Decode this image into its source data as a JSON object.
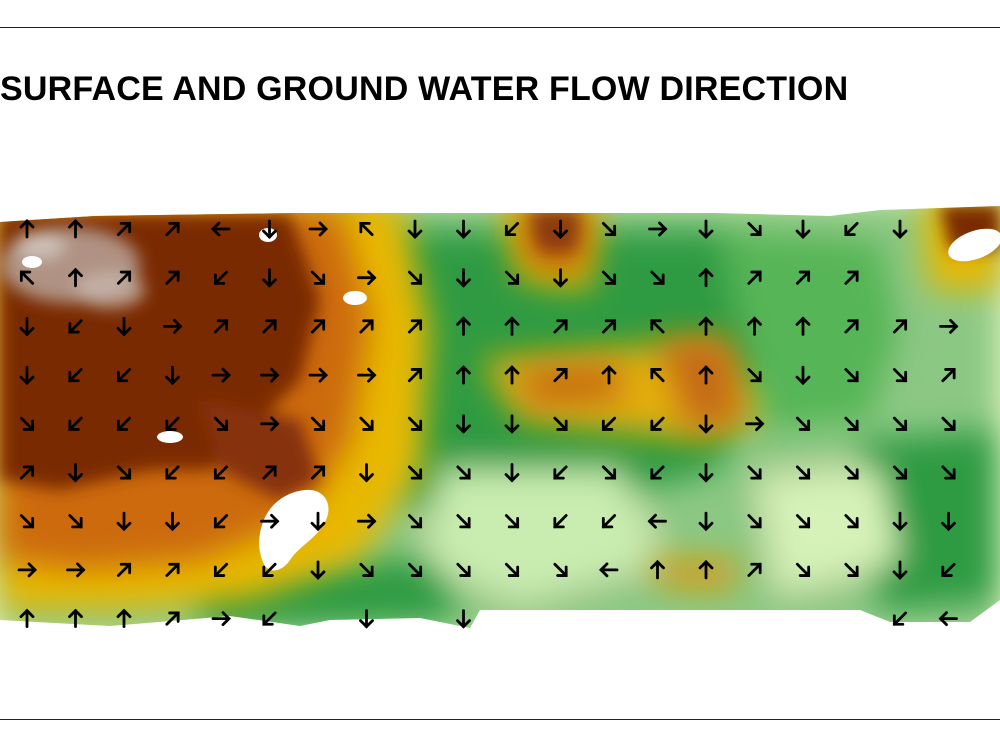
{
  "title": "SURFACE AND GROUND WATER FLOW DIRECTION",
  "colors": {
    "lowland_pale": "#eef9c8",
    "lowland_green": "#2f9b43",
    "midland_yellow": "#e8b800",
    "midland_orange": "#cc6a08",
    "highland_brown": "#7a2c06",
    "peak_grey": "#b9a59a",
    "cloud_gap": "#ffffff",
    "arrow": "#000000"
  },
  "flow_arrows": {
    "row_1": [
      "N",
      "N",
      "NE",
      "NE",
      "W",
      "S",
      "E",
      "NW",
      "S",
      "S",
      "SW",
      "S",
      "SE",
      "E",
      "S",
      "SE",
      "S",
      "SW",
      "S",
      ""
    ],
    "row_2": [
      "NW",
      "N",
      "NE",
      "NE",
      "SW",
      "S",
      "SE",
      "E",
      "SE",
      "S",
      "SE",
      "S",
      "SE",
      "SE",
      "N",
      "NE",
      "NE",
      "NE",
      "",
      ""
    ],
    "row_3": [
      "S",
      "SW",
      "S",
      "E",
      "NE",
      "NE",
      "NE",
      "NE",
      "NE",
      "N",
      "N",
      "NE",
      "NE",
      "NW",
      "N",
      "N",
      "N",
      "NE",
      "NE",
      "E"
    ],
    "row_4": [
      "S",
      "SW",
      "SW",
      "S",
      "E",
      "E",
      "E",
      "E",
      "NE",
      "N",
      "N",
      "NE",
      "N",
      "NW",
      "N",
      "SE",
      "S",
      "SE",
      "SE",
      "NE"
    ],
    "row_5": [
      "SE",
      "SW",
      "SW",
      "SW",
      "SE",
      "E",
      "SE",
      "SE",
      "SE",
      "S",
      "S",
      "SE",
      "SW",
      "SW",
      "S",
      "E",
      "SE",
      "SE",
      "SE",
      "SE"
    ],
    "row_6": [
      "NE",
      "S",
      "SE",
      "SW",
      "SW",
      "NE",
      "NE",
      "S",
      "SE",
      "SE",
      "S",
      "SW",
      "SE",
      "SW",
      "S",
      "SE",
      "SE",
      "SE",
      "SE",
      "SE"
    ],
    "row_7": [
      "SE",
      "SE",
      "S",
      "S",
      "SW",
      "E",
      "S",
      "E",
      "SE",
      "SE",
      "SE",
      "SW",
      "SW",
      "W",
      "S",
      "SE",
      "SE",
      "SE",
      "S",
      "S"
    ],
    "row_8": [
      "E",
      "E",
      "NE",
      "NE",
      "SW",
      "SW",
      "S",
      "SE",
      "SE",
      "SE",
      "SE",
      "SE",
      "W",
      "N",
      "N",
      "NE",
      "SE",
      "SE",
      "S",
      "SW"
    ],
    "row_9": [
      "N",
      "N",
      "N",
      "NE",
      "E",
      "SW",
      "",
      "S",
      "",
      "S",
      "",
      "",
      "",
      "",
      "",
      "",
      "",
      "",
      "SW",
      "W"
    ]
  }
}
